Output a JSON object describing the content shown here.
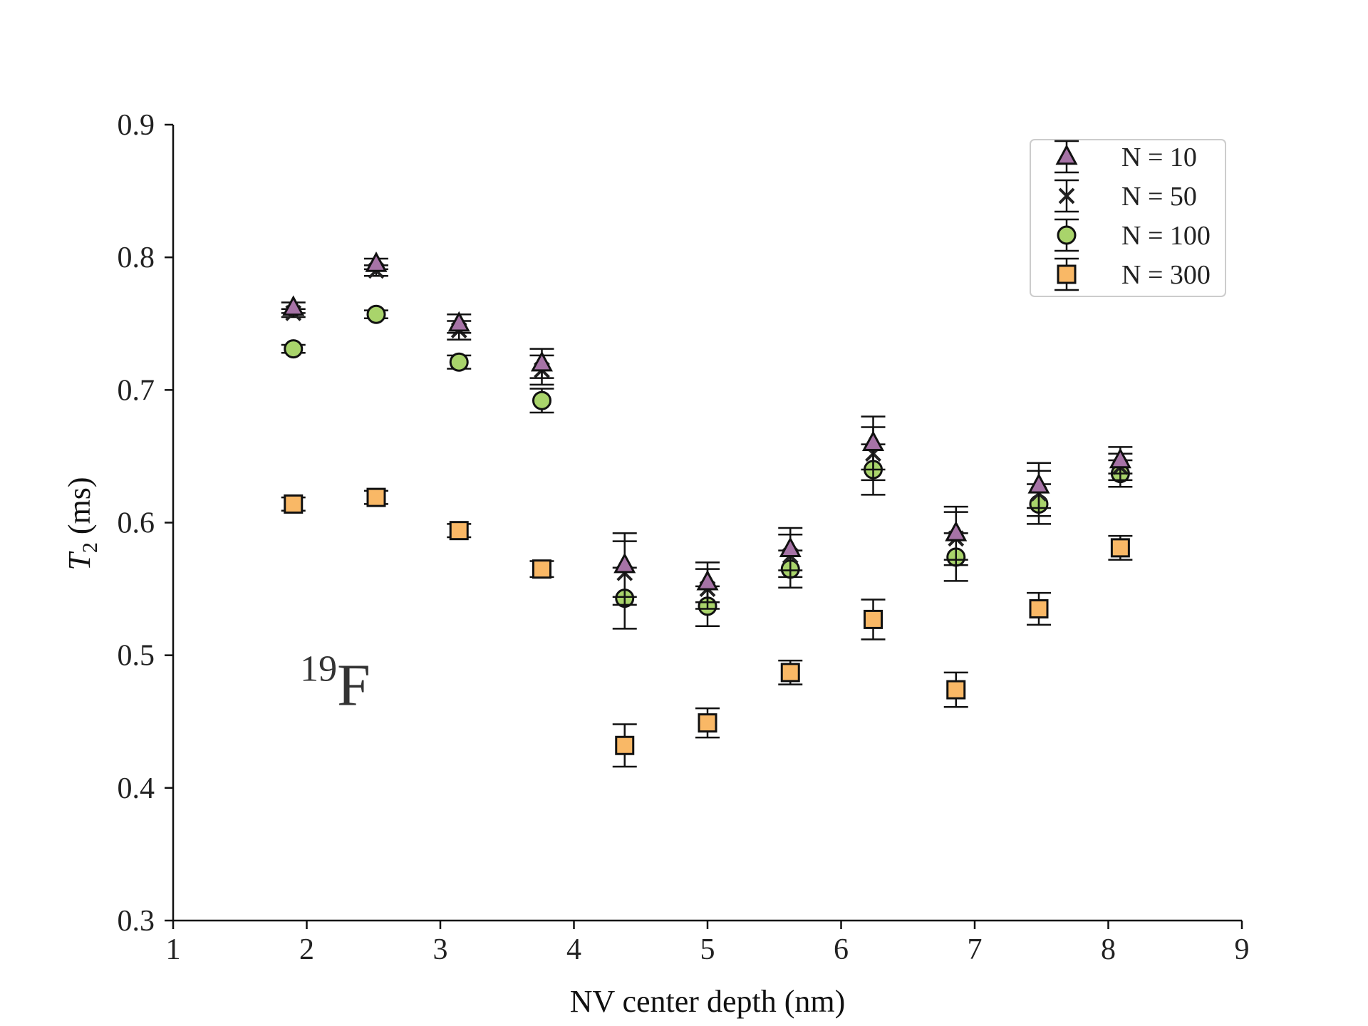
{
  "chart_data": {
    "type": "scatter",
    "xlabel": "NV center depth (nm)",
    "ylabel_symbol": "T",
    "ylabel_subscript": "2",
    "ylabel_unit": " (ms)",
    "xlim": [
      1,
      9
    ],
    "ylim": [
      0.3,
      0.9
    ],
    "xticks": [
      1,
      2,
      3,
      4,
      5,
      6,
      7,
      8,
      9
    ],
    "yticks": [
      0.3,
      0.4,
      0.5,
      0.6,
      0.7,
      0.8,
      0.9
    ],
    "xtick_labels": [
      "1",
      "2",
      "3",
      "4",
      "5",
      "6",
      "7",
      "8",
      "9"
    ],
    "ytick_labels": [
      "0.3",
      "0.4",
      "0.5",
      "0.6",
      "0.7",
      "0.8",
      "0.9"
    ],
    "grid": false,
    "legend_position": "top-right",
    "annotation": {
      "superscript": "19",
      "text": "F",
      "x": 1.95,
      "y": 0.47
    },
    "x": [
      1.9,
      2.52,
      3.14,
      3.76,
      4.38,
      5.0,
      5.62,
      6.24,
      6.86,
      7.48,
      8.09
    ],
    "series": [
      {
        "name": "N = 10",
        "marker": "triangle",
        "color": "#a673a6",
        "values": [
          0.762,
          0.795,
          0.75,
          0.72,
          0.568,
          0.555,
          0.58,
          0.66,
          0.592,
          0.628,
          0.647
        ],
        "errors": [
          0.004,
          0.004,
          0.007,
          0.011,
          0.024,
          0.015,
          0.016,
          0.02,
          0.02,
          0.017,
          0.01
        ]
      },
      {
        "name": "N = 50",
        "marker": "x",
        "color": "#222222",
        "values": [
          0.758,
          0.79,
          0.745,
          0.715,
          0.562,
          0.55,
          0.575,
          0.652,
          0.588,
          0.622,
          0.642
        ],
        "errors": [
          0.003,
          0.004,
          0.007,
          0.011,
          0.024,
          0.015,
          0.016,
          0.02,
          0.02,
          0.017,
          0.01
        ]
      },
      {
        "name": "N = 100",
        "marker": "circle",
        "color": "#a9d46b",
        "values": [
          0.731,
          0.757,
          0.721,
          0.692,
          0.543,
          0.537,
          0.565,
          0.64,
          0.574,
          0.614,
          0.637
        ],
        "errors": [
          0.003,
          0.003,
          0.005,
          0.009,
          0.023,
          0.015,
          0.014,
          0.019,
          0.018,
          0.015,
          0.01
        ]
      },
      {
        "name": "N = 300",
        "marker": "square",
        "color": "#f9b866",
        "values": [
          0.614,
          0.619,
          0.594,
          0.565,
          0.432,
          0.449,
          0.487,
          0.527,
          0.474,
          0.535,
          0.581
        ],
        "errors": [
          0.005,
          0.005,
          0.005,
          0.006,
          0.016,
          0.011,
          0.009,
          0.015,
          0.013,
          0.012,
          0.009
        ]
      }
    ]
  }
}
